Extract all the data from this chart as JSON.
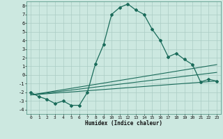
{
  "xlabel": "Humidex (Indice chaleur)",
  "bg_color": "#cce8e0",
  "line_color": "#1a6b5a",
  "grid_color": "#aaccc4",
  "xlim": [
    -0.5,
    23.5
  ],
  "ylim": [
    -4.5,
    8.5
  ],
  "xticks": [
    0,
    1,
    2,
    3,
    4,
    5,
    6,
    7,
    8,
    9,
    10,
    11,
    12,
    13,
    14,
    15,
    16,
    17,
    18,
    19,
    20,
    21,
    22,
    23
  ],
  "yticks": [
    -4,
    -3,
    -2,
    -1,
    0,
    1,
    2,
    3,
    4,
    5,
    6,
    7,
    8
  ],
  "main_x": [
    0,
    1,
    2,
    3,
    4,
    5,
    6,
    7,
    8,
    9,
    10,
    11,
    12,
    13,
    14,
    15,
    16,
    17,
    18,
    19,
    20,
    21,
    22,
    23
  ],
  "main_y": [
    -2.0,
    -2.5,
    -2.8,
    -3.3,
    -3.0,
    -3.5,
    -3.5,
    -2.0,
    1.3,
    3.5,
    7.0,
    7.8,
    8.2,
    7.5,
    7.0,
    5.3,
    4.0,
    2.1,
    2.5,
    1.8,
    1.2,
    -0.8,
    -0.5,
    -0.7
  ],
  "line1_x": [
    0,
    23
  ],
  "line1_y": [
    -2.3,
    -0.7
  ],
  "line2_x": [
    0,
    23
  ],
  "line2_y": [
    -2.3,
    0.3
  ],
  "line3_x": [
    0,
    23
  ],
  "line3_y": [
    -2.3,
    1.2
  ]
}
